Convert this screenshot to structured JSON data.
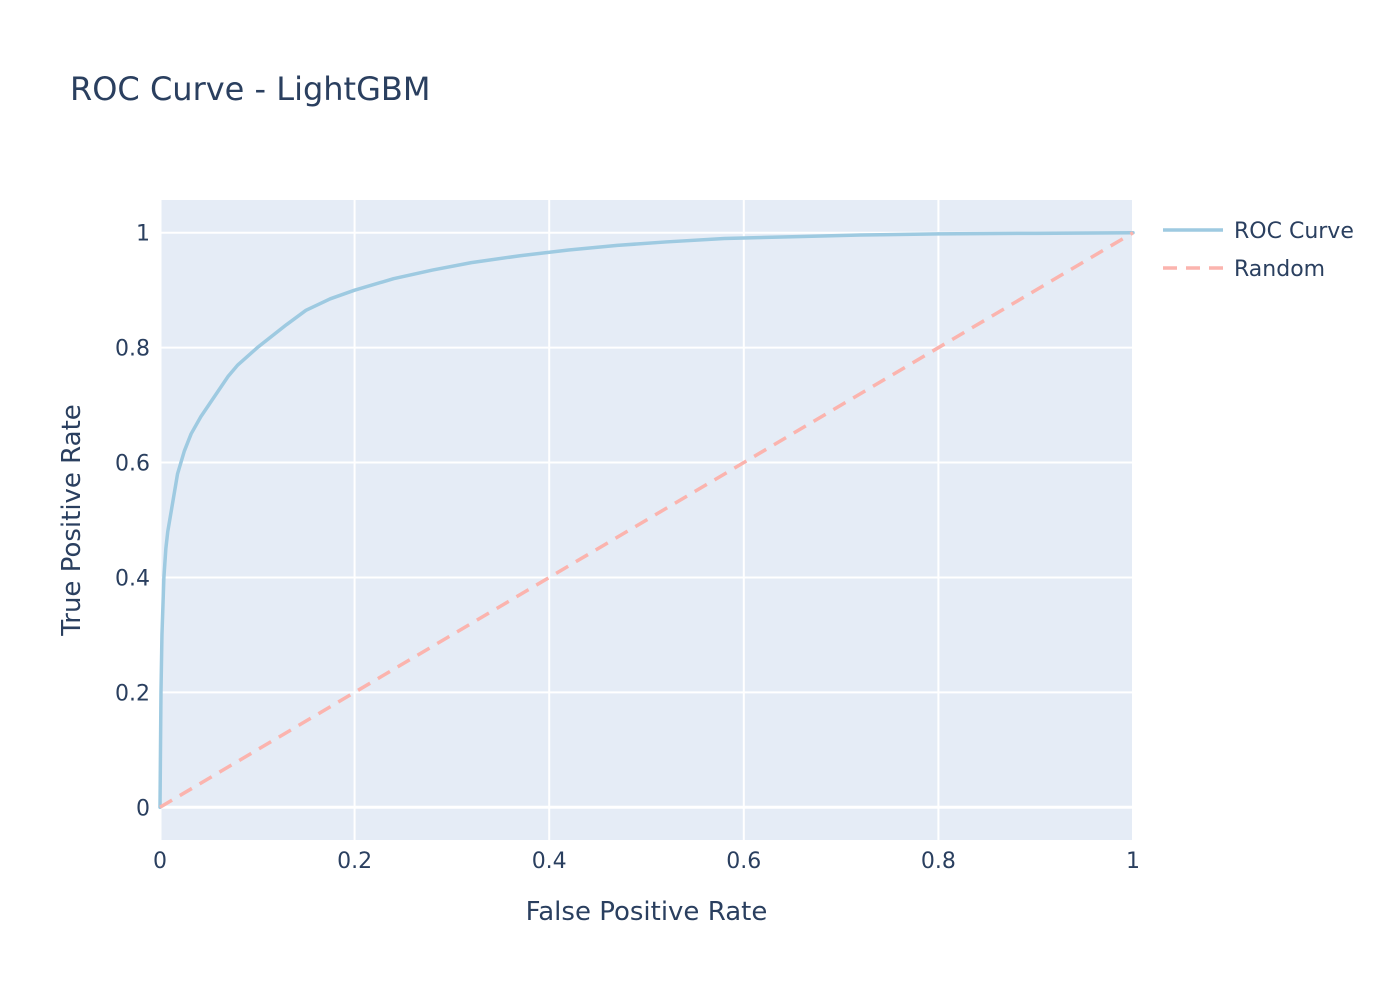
{
  "chart_data": {
    "type": "line",
    "title": "ROC Curve - LightGBM",
    "xlabel": "False Positive Rate",
    "ylabel": "True Positive Rate",
    "xlim": [
      0,
      1
    ],
    "ylim": [
      -0.057,
      1.057
    ],
    "x_ticks": [
      0,
      0.2,
      0.4,
      0.6,
      0.8,
      1
    ],
    "x_tick_labels": [
      "0",
      "0.2",
      "0.4",
      "0.6",
      "0.8",
      "1"
    ],
    "y_ticks": [
      0,
      0.2,
      0.4,
      0.6,
      0.8,
      1
    ],
    "y_tick_labels": [
      "0",
      "0.2",
      "0.4",
      "0.6",
      "0.8",
      "1"
    ],
    "grid": true,
    "legend_position": "top-right outside",
    "background_color": "#e5ecf6",
    "series": [
      {
        "name": "ROC Curve",
        "color": "#9ecae1",
        "dash": "solid",
        "x": [
          0,
          0.001,
          0.002,
          0.003,
          0.004,
          0.006,
          0.008,
          0.012,
          0.018,
          0.025,
          0.032,
          0.042,
          0.05,
          0.06,
          0.07,
          0.08,
          0.09,
          0.1,
          0.115,
          0.13,
          0.15,
          0.175,
          0.2,
          0.24,
          0.28,
          0.32,
          0.37,
          0.42,
          0.47,
          0.52,
          0.58,
          0.65,
          0.72,
          0.8,
          0.9,
          1.0
        ],
        "y": [
          0,
          0.2,
          0.3,
          0.35,
          0.4,
          0.45,
          0.48,
          0.52,
          0.58,
          0.62,
          0.65,
          0.68,
          0.7,
          0.725,
          0.75,
          0.77,
          0.785,
          0.8,
          0.82,
          0.84,
          0.865,
          0.885,
          0.9,
          0.92,
          0.935,
          0.948,
          0.96,
          0.97,
          0.978,
          0.984,
          0.99,
          0.993,
          0.996,
          0.998,
          0.999,
          1.0
        ]
      },
      {
        "name": "Random",
        "color": "#fbb4ae",
        "dash": "dash",
        "x": [
          0,
          1
        ],
        "y": [
          0,
          1
        ]
      }
    ]
  }
}
